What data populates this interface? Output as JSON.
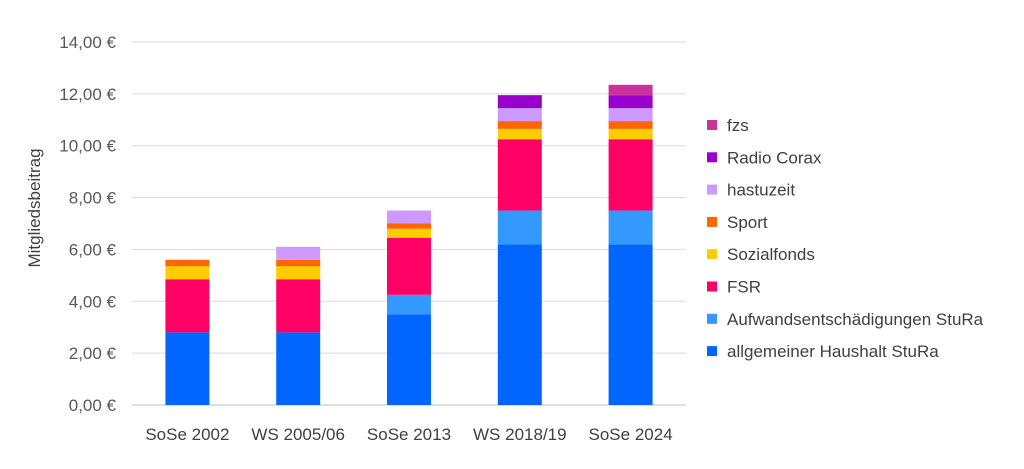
{
  "chart_data": {
    "type": "bar",
    "stacked": true,
    "title": "",
    "xlabel": "",
    "ylabel": "Mitgliedsbeitrag",
    "ylim": [
      0,
      14
    ],
    "yticks": [
      0,
      2,
      4,
      6,
      8,
      10,
      12,
      14
    ],
    "ytick_labels": [
      "0,00 €",
      "2,00 €",
      "4,00 €",
      "6,00 €",
      "8,00 €",
      "10,00 €",
      "12,00 €",
      "14,00 €"
    ],
    "grid": true,
    "legend_position": "right",
    "categories": [
      "SoSe 2002",
      "WS 2005/06",
      "SoSe 2013",
      "WS 2018/19",
      "SoSe 2024"
    ],
    "series": [
      {
        "name": "allgemeiner Haushalt StuRa",
        "color": "#0066ff",
        "values": [
          2.8,
          2.8,
          3.5,
          6.2,
          6.2
        ]
      },
      {
        "name": "Aufwandsentschädigungen StuRa",
        "color": "#3399ff",
        "values": [
          0,
          0,
          0.75,
          1.3,
          1.3
        ]
      },
      {
        "name": "FSR",
        "color": "#ff0066",
        "values": [
          2.05,
          2.05,
          2.2,
          2.75,
          2.75
        ]
      },
      {
        "name": "Sozialfonds",
        "color": "#ffcc00",
        "values": [
          0.5,
          0.5,
          0.35,
          0.4,
          0.4
        ]
      },
      {
        "name": "Sport",
        "color": "#ff6600",
        "values": [
          0.25,
          0.25,
          0.2,
          0.3,
          0.3
        ]
      },
      {
        "name": "hastuzeit",
        "color": "#cc99ff",
        "values": [
          0,
          0.5,
          0.5,
          0.5,
          0.5
        ]
      },
      {
        "name": "Radio Corax",
        "color": "#9900cc",
        "values": [
          0,
          0,
          0,
          0.5,
          0.5
        ]
      },
      {
        "name": "fzs",
        "color": "#cc3399",
        "values": [
          0,
          0,
          0,
          0,
          0.4
        ]
      }
    ]
  }
}
